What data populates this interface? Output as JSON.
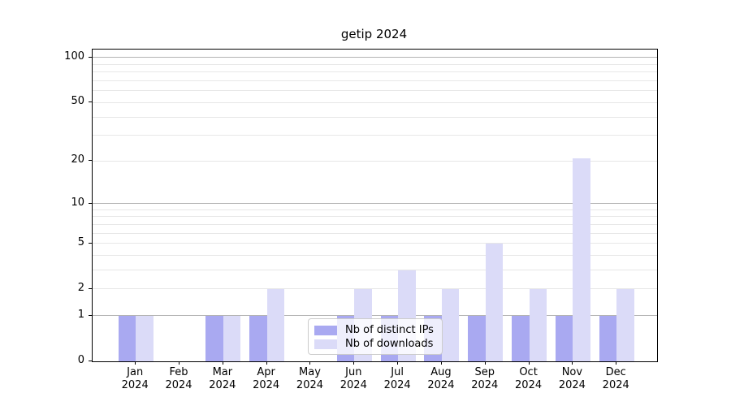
{
  "title": "getip 2024",
  "colors": {
    "distinct_ips_bar": "#a9a9f1",
    "downloads_bar": "#dbdbf8",
    "grid_major": "#b3b3b3",
    "grid_minor": "#e7e7e7",
    "axis": "#000000",
    "legend_border": "#cccccc"
  },
  "legend": {
    "items": [
      {
        "label": "Nb of distinct IPs",
        "color": "#a9a9f1"
      },
      {
        "label": "Nb of downloads",
        "color": "#dbdbf8"
      }
    ]
  },
  "chart_data": {
    "type": "bar",
    "title": "getip 2024",
    "categories": [
      "Jan 2024",
      "Feb 2024",
      "Mar 2024",
      "Apr 2024",
      "May 2024",
      "Jun 2024",
      "Jul 2024",
      "Aug 2024",
      "Sep 2024",
      "Oct 2024",
      "Nov 2024",
      "Dec 2024"
    ],
    "x_tick_month": [
      "Jan",
      "Feb",
      "Mar",
      "Apr",
      "May",
      "Jun",
      "Jul",
      "Aug",
      "Sep",
      "Oct",
      "Nov",
      "Dec"
    ],
    "x_tick_year": "2024",
    "series": [
      {
        "name": "Nb of distinct IPs",
        "color": "#a9a9f1",
        "values": [
          1,
          0,
          1,
          1,
          0,
          1,
          1,
          1,
          1,
          1,
          1,
          1
        ]
      },
      {
        "name": "Nb of downloads",
        "color": "#dbdbf8",
        "values": [
          1,
          0,
          1,
          2,
          0,
          2,
          3,
          2,
          5,
          2,
          21,
          2
        ]
      }
    ],
    "y_scale": "log10(1+v)",
    "y_ticks": [
      0,
      1,
      2,
      5,
      10,
      20,
      50,
      100
    ],
    "y_major_gridlines": [
      1,
      10,
      100
    ],
    "y_minor_gridlines": [
      3,
      4,
      6,
      7,
      8,
      9,
      30,
      40,
      60,
      70,
      80,
      90
    ],
    "ylim": [
      0,
      114
    ],
    "grid": true,
    "legend_position": "lower center (inside plot)",
    "xlabel": "",
    "ylabel": ""
  }
}
